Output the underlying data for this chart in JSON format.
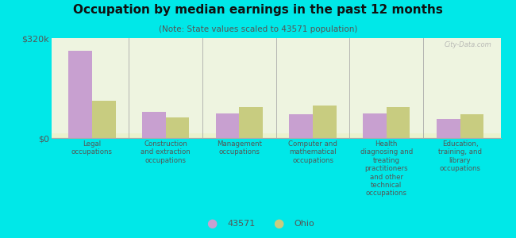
{
  "title": "Occupation by median earnings in the past 12 months",
  "subtitle": "(Note: State values scaled to 43571 population)",
  "background_color": "#00e8e8",
  "categories": [
    "Legal\noccupations",
    "Construction\nand extraction\noccupations",
    "Management\noccupations",
    "Computer and\nmathematical\noccupations",
    "Health\ndiagnosing and\ntreating\npractitioners\nand other\ntechnical\noccupations",
    "Education,\ntraining, and\nlibrary\noccupations"
  ],
  "values_43571": [
    280000,
    85000,
    80000,
    75000,
    78000,
    62000
  ],
  "values_ohio": [
    120000,
    65000,
    98000,
    105000,
    100000,
    75000
  ],
  "color_43571": "#c8a0d0",
  "color_ohio": "#c8cc80",
  "ylim": [
    0,
    320000
  ],
  "ytick_labels": [
    "$0",
    "$320k"
  ],
  "ytick_values": [
    0,
    320000
  ],
  "legend_43571": "43571",
  "legend_ohio": "Ohio",
  "watermark": "City-Data.com"
}
